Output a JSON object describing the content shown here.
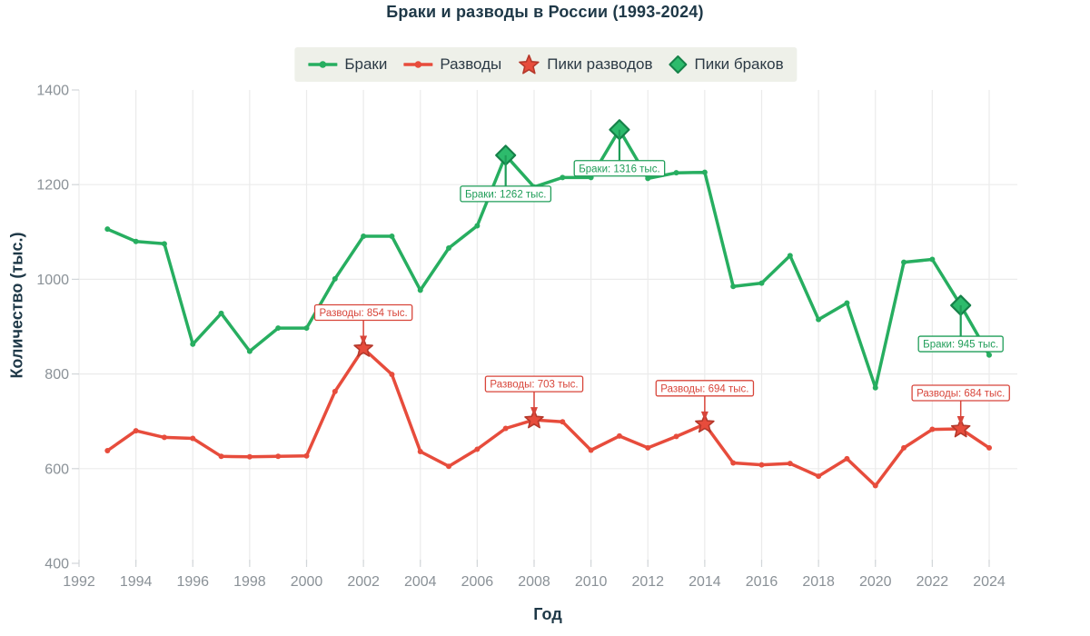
{
  "chart_data": {
    "type": "line",
    "title": "Браки и разводы в России (1993-2024)",
    "xlabel": "Год",
    "ylabel": "Количество (тыс.)",
    "x": [
      1993,
      1994,
      1995,
      1996,
      1997,
      1998,
      1999,
      2000,
      2001,
      2002,
      2003,
      2004,
      2005,
      2006,
      2007,
      2008,
      2009,
      2010,
      2011,
      2012,
      2013,
      2014,
      2015,
      2016,
      2017,
      2018,
      2019,
      2020,
      2021,
      2022,
      2023,
      2024
    ],
    "series": [
      {
        "name": "Браки",
        "color": "#27ae60",
        "values": [
          1106,
          1080,
          1075,
          863,
          928,
          848,
          897,
          897,
          1001,
          1091,
          1091,
          977,
          1066,
          1113,
          1262,
          1195,
          1215,
          1215,
          1316,
          1213,
          1225,
          1226,
          985,
          992,
          1050,
          915,
          950,
          771,
          1036,
          1042,
          945,
          840
        ]
      },
      {
        "name": "Разводы",
        "color": "#e74c3c",
        "values": [
          638,
          680,
          666,
          664,
          626,
          625,
          626,
          627,
          763,
          854,
          799,
          636,
          605,
          641,
          685,
          703,
          699,
          639,
          669,
          644,
          668,
          694,
          612,
          608,
          611,
          584,
          621,
          564,
          644,
          683,
          684,
          644
        ]
      }
    ],
    "marriage_peaks": [
      {
        "year": 2007,
        "value": 1262,
        "label": "Браки: 1262 тыс."
      },
      {
        "year": 2011,
        "value": 1316,
        "label": "Браки: 1316 тыс."
      },
      {
        "year": 2023,
        "value": 945,
        "label": "Браки: 945 тыс."
      }
    ],
    "divorce_peaks": [
      {
        "year": 2002,
        "value": 854,
        "label": "Разводы: 854 тыс."
      },
      {
        "year": 2008,
        "value": 703,
        "label": "Разводы: 703 тыс."
      },
      {
        "year": 2014,
        "value": 694,
        "label": "Разводы: 694 тыс."
      },
      {
        "year": 2023,
        "value": 684,
        "label": "Разводы: 684 тыс."
      }
    ],
    "xticks": [
      1992,
      1994,
      1996,
      1998,
      2000,
      2002,
      2004,
      2006,
      2008,
      2010,
      2012,
      2014,
      2016,
      2018,
      2020,
      2022,
      2024
    ],
    "yticks": [
      400,
      600,
      800,
      1000,
      1200,
      1400
    ],
    "ylim": [
      400,
      1400
    ],
    "xlim": [
      1992,
      2024
    ],
    "grid": true,
    "legend_position": "top-center"
  },
  "legend": {
    "items": [
      {
        "id": "marriages",
        "label": "Браки",
        "type": "line",
        "color": "#27ae60",
        "stroke": "#27ae60"
      },
      {
        "id": "divorces",
        "label": "Разводы",
        "type": "line",
        "color": "#e74c3c",
        "stroke": "#e74c3c"
      },
      {
        "id": "divorce-peaks",
        "label": "Пики разводов",
        "type": "star",
        "color": "#e74c3c",
        "stroke": "#b5382b"
      },
      {
        "id": "marriage-peaks",
        "label": "Пики браков",
        "type": "diamond",
        "color": "#2dbb6c",
        "stroke": "#168149"
      }
    ]
  },
  "colors": {
    "marriage_line": "#27ae60",
    "divorce_line": "#e74c3c",
    "diamond_fill": "#2dbb6c",
    "diamond_stroke": "#168149",
    "star_fill": "#e74c3c",
    "star_stroke": "#b5382b",
    "annotation_marriage": "#1f9d58",
    "annotation_divorce": "#d8453a",
    "grid": "#ebebeb",
    "tick_mark": "#d2d6d9",
    "tick_text": "#8a9197",
    "heading_text": "#1e3847",
    "legend_bg": "#eef0e9"
  }
}
